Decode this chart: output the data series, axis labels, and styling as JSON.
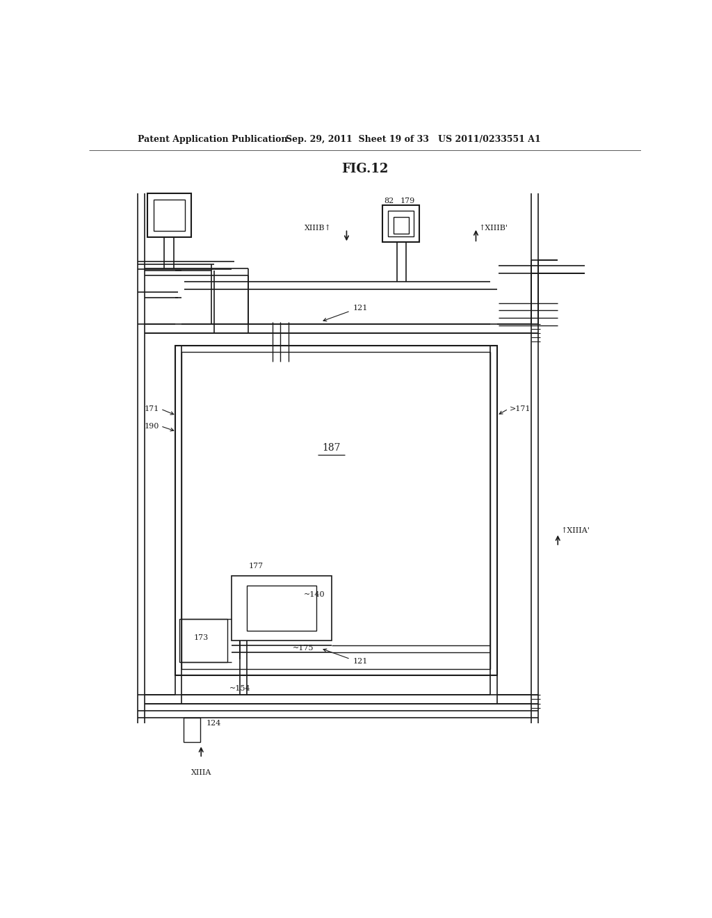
{
  "title": "FIG.12",
  "header_left": "Patent Application Publication",
  "header_mid": "Sep. 29, 2011  Sheet 19 of 33",
  "header_right": "US 2011/0233551 A1",
  "bg_color": "#ffffff",
  "line_color": "#1a1a1a"
}
